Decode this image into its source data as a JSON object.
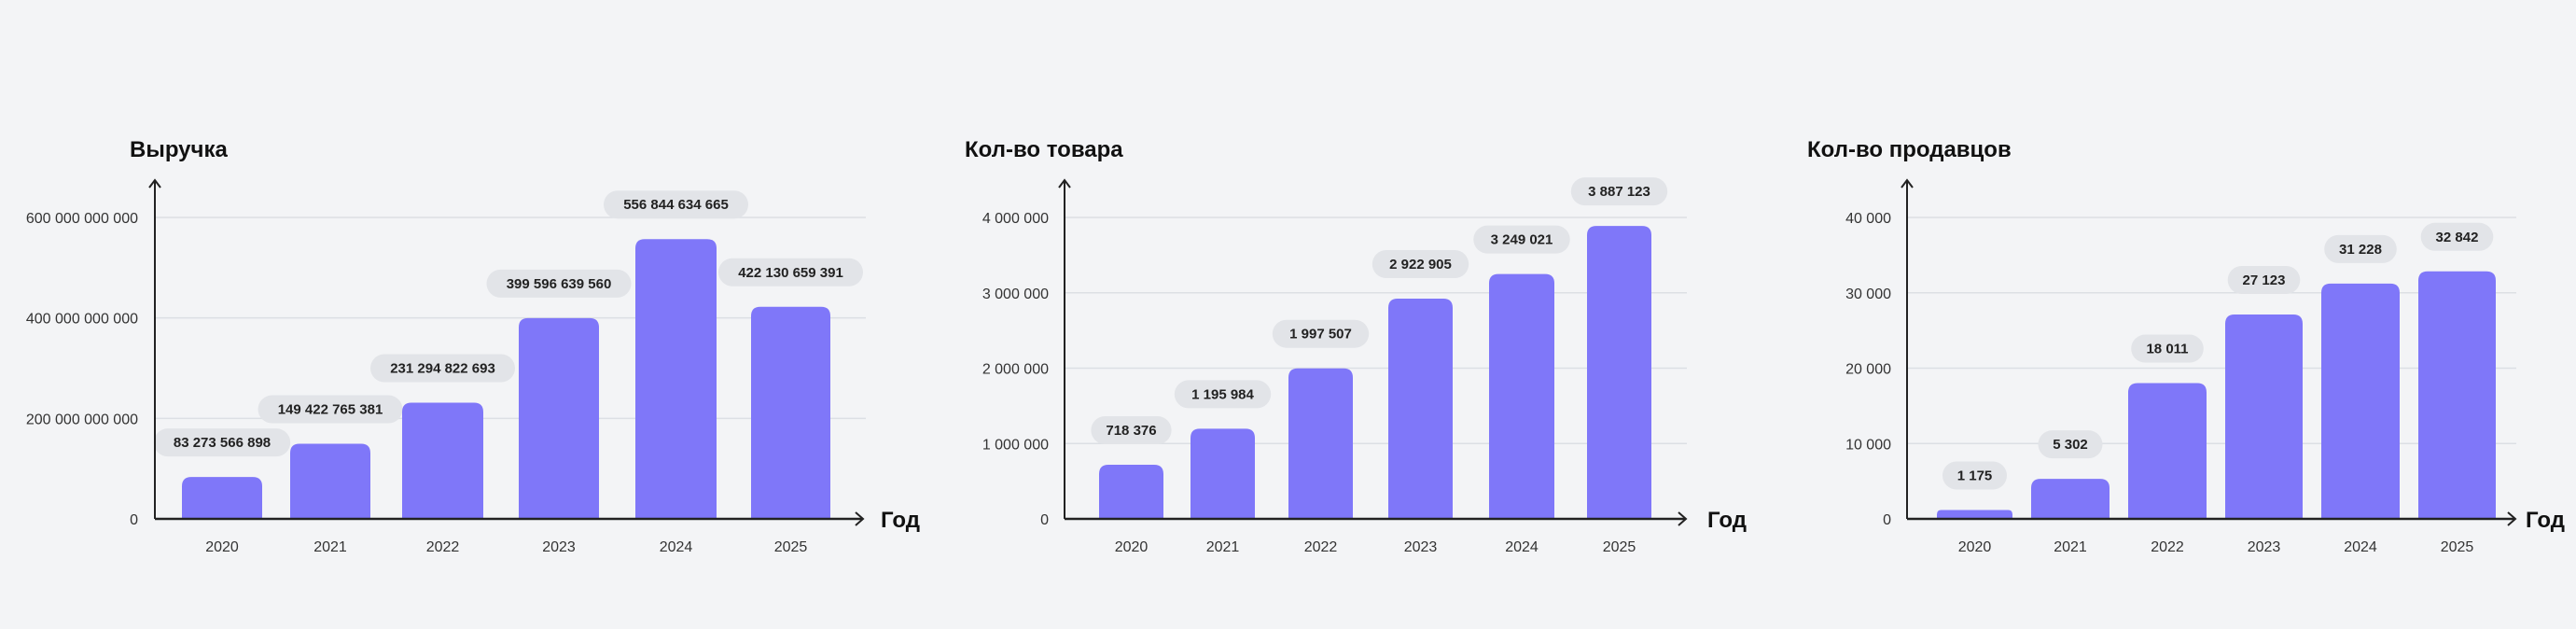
{
  "colors": {
    "bar": "#7f77f9",
    "pill": "#e2e4e8",
    "grid": "#dcdfe4",
    "axis": "#222222",
    "background": "#f3f4f6"
  },
  "chart_data": [
    {
      "type": "bar",
      "title": "Выручка",
      "xlabel": "Год",
      "ylabel": "",
      "categories": [
        "2020",
        "2021",
        "2022",
        "2023",
        "2024",
        "2025"
      ],
      "values": [
        83273566898,
        149422765381,
        231294822693,
        399596639560,
        556844634665,
        422130659391
      ],
      "data_labels": [
        "83 273 566 898",
        "149 422 765 381",
        "231 294 822 693",
        "399 596 639 560",
        "556 844 634 665",
        "422 130 659 391"
      ],
      "yticks": [
        0,
        200000000000,
        400000000000,
        600000000000
      ],
      "ytick_labels": [
        "0",
        "200 000 000 000",
        "400 000 000 000",
        "600 000 000 000"
      ],
      "ylim": [
        0,
        680000000000
      ],
      "grid": true
    },
    {
      "type": "bar",
      "title": "Кол-во товара",
      "xlabel": "Год",
      "ylabel": "",
      "categories": [
        "2020",
        "2021",
        "2022",
        "2023",
        "2024",
        "2025"
      ],
      "values": [
        718376,
        1195984,
        1997507,
        2922905,
        3249021,
        3887123
      ],
      "data_labels": [
        "718 376",
        "1 195 984",
        "1 997 507",
        "2 922 905",
        "3 249 021",
        "3 887 123"
      ],
      "yticks": [
        0,
        1000000,
        2000000,
        3000000,
        4000000
      ],
      "ytick_labels": [
        "0",
        "1 000 000",
        "2 000 000",
        "3 000 000",
        "4 000 000"
      ],
      "ylim": [
        0,
        4500000
      ],
      "grid": true
    },
    {
      "type": "bar",
      "title": "Кол-во продавцов",
      "xlabel": "Год",
      "ylabel": "",
      "categories": [
        "2020",
        "2021",
        "2022",
        "2023",
        "2024",
        "2025"
      ],
      "values": [
        1175,
        5302,
        18011,
        27123,
        31228,
        32842
      ],
      "data_labels": [
        "1 175",
        "5 302",
        "18 011",
        "27 123",
        "31 228",
        "32 842"
      ],
      "yticks": [
        0,
        10000,
        20000,
        30000,
        40000
      ],
      "ytick_labels": [
        "0",
        "10 000",
        "20 000",
        "30 000",
        "40 000"
      ],
      "ylim": [
        0,
        45000
      ],
      "grid": true
    }
  ]
}
